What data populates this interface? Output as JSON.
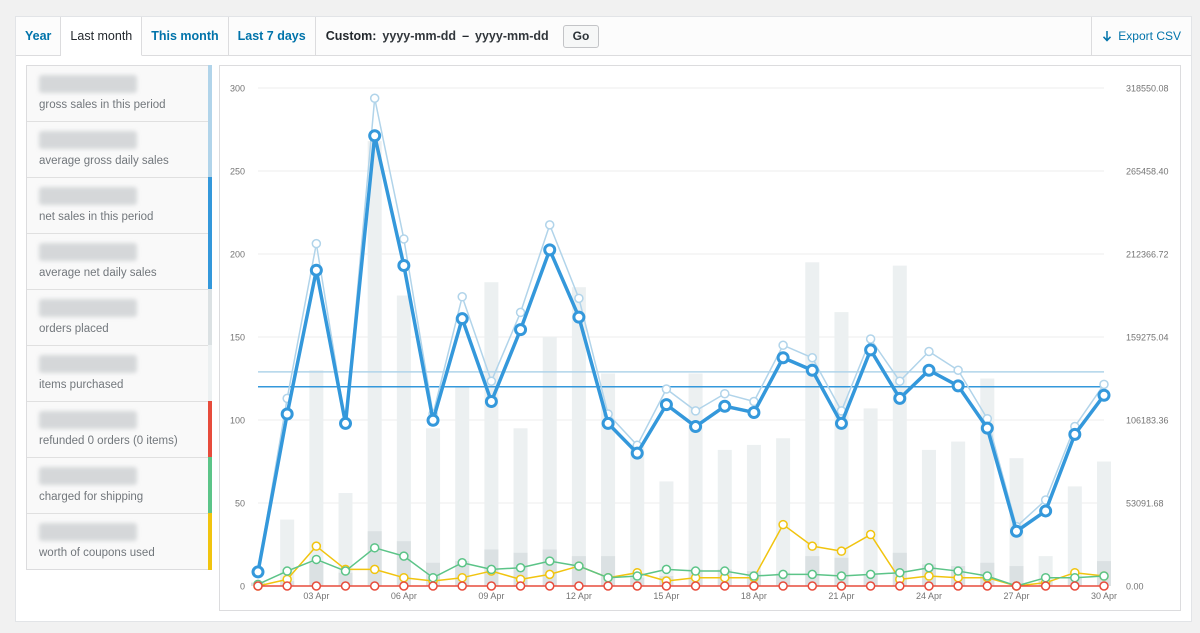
{
  "tabs": [
    {
      "label": "Year",
      "active": false
    },
    {
      "label": "Last month",
      "active": true
    },
    {
      "label": "This month",
      "active": false
    },
    {
      "label": "Last 7 days",
      "active": false
    }
  ],
  "custom": {
    "label": "Custom:",
    "from": "yyyy-mm-dd",
    "to": "yyyy-mm-dd",
    "separator": "–",
    "go_label": "Go"
  },
  "export": {
    "label": "Export CSV",
    "icon": "download-arrow-icon"
  },
  "stats": [
    {
      "desc": "gross sales in this period",
      "color": "#b1d4ea"
    },
    {
      "desc": "average gross daily sales",
      "color": "#b1d4ea"
    },
    {
      "desc": "net sales in this period",
      "color": "#3498db"
    },
    {
      "desc": "average net daily sales",
      "color": "#3498db"
    },
    {
      "desc": "orders placed",
      "color": "#dbe1e3"
    },
    {
      "desc": "items purchased",
      "color": "#ecf0f1"
    },
    {
      "desc": "refunded 0 orders (0 items)",
      "color": "#e74c3c"
    },
    {
      "desc": "charged for shipping",
      "color": "#5cc488"
    },
    {
      "desc": "worth of coupons used",
      "color": "#f1c40f"
    }
  ],
  "chart_data": {
    "type": "line",
    "x_ticks": [
      "03 Apr",
      "06 Apr",
      "09 Apr",
      "12 Apr",
      "15 Apr",
      "18 Apr",
      "21 Apr",
      "24 Apr",
      "27 Apr",
      "30 Apr"
    ],
    "x_tick_days": [
      3,
      6,
      9,
      12,
      15,
      18,
      21,
      24,
      27,
      30
    ],
    "days": [
      1,
      2,
      3,
      4,
      5,
      6,
      7,
      8,
      9,
      10,
      11,
      12,
      13,
      14,
      15,
      16,
      17,
      18,
      19,
      20,
      21,
      22,
      23,
      24,
      25,
      26,
      27,
      28,
      29,
      30
    ],
    "y_left": {
      "ticks": [
        "0",
        "50",
        "100",
        "150",
        "200",
        "250",
        "300"
      ],
      "ylim": [
        0,
        300
      ]
    },
    "y_right": {
      "ticks": [
        "0.00",
        "53091.68",
        "106183.36",
        "159275.04",
        "212366.72",
        "265458.40",
        "318550.08"
      ],
      "ylim": [
        0,
        318550.08
      ]
    },
    "colors": {
      "orders_bar": "#dbe1e3",
      "items_bar": "#ecf0f1",
      "gross": "#b1d4ea",
      "net": "#3498db",
      "shipping": "#5cc488",
      "coupons": "#f1c40f",
      "refunds": "#e74c3c",
      "avg_gross": "#b1d4ea",
      "avg_net": "#3498db"
    },
    "series": [
      {
        "key": "items_bar",
        "type": "bar",
        "values": [
          2,
          40,
          130,
          56,
          268,
          175,
          95,
          120,
          183,
          95,
          150,
          180,
          128,
          85,
          63,
          128,
          82,
          85,
          89,
          195,
          165,
          107,
          193,
          82,
          87,
          125,
          77,
          18,
          60,
          75
        ]
      },
      {
        "key": "orders_bar",
        "type": "bar",
        "values": [
          2,
          3,
          14,
          8,
          33,
          27,
          14,
          15,
          22,
          20,
          22,
          18,
          18,
          5,
          6,
          10,
          10,
          9,
          8,
          18,
          17,
          7,
          20,
          13,
          12,
          14,
          12,
          3,
          5,
          15
        ]
      },
      {
        "key": "gross",
        "type": "line",
        "axis": "right",
        "values": [
          9900,
          120000,
          219000,
          104000,
          312000,
          222000,
          110000,
          185000,
          131000,
          175000,
          231000,
          184000,
          110000,
          90000,
          126000,
          112000,
          123000,
          118000,
          154000,
          146000,
          112000,
          158000,
          131000,
          150000,
          138000,
          107000,
          38000,
          55000,
          102000,
          129000
        ]
      },
      {
        "key": "net",
        "type": "line",
        "axis": "right",
        "values": [
          9000,
          110000,
          202000,
          104000,
          288000,
          205000,
          106000,
          171000,
          118000,
          164000,
          215000,
          172000,
          104000,
          85000,
          116000,
          102000,
          115000,
          111000,
          146000,
          138000,
          104000,
          151000,
          120000,
          138000,
          128000,
          101000,
          35000,
          48000,
          97000,
          122000
        ]
      },
      {
        "key": "coupons",
        "type": "line",
        "axis": "left",
        "values": [
          0,
          4,
          24,
          10,
          10,
          5,
          3,
          5,
          9,
          4,
          7,
          12,
          5,
          8,
          3,
          5,
          5,
          5,
          37,
          24,
          21,
          31,
          4,
          6,
          5,
          5,
          0,
          2,
          8,
          6
        ]
      },
      {
        "key": "shipping",
        "type": "line",
        "axis": "left",
        "values": [
          1,
          9,
          16,
          9,
          23,
          18,
          5,
          14,
          10,
          11,
          15,
          12,
          5,
          6,
          10,
          9,
          9,
          6,
          7,
          7,
          6,
          7,
          8,
          11,
          9,
          6,
          0,
          5,
          5,
          6
        ]
      },
      {
        "key": "refunds",
        "type": "line",
        "axis": "left",
        "values": [
          0,
          0,
          0,
          0,
          0,
          0,
          0,
          0,
          0,
          0,
          0,
          0,
          0,
          0,
          0,
          0,
          0,
          0,
          0,
          0,
          0,
          0,
          0,
          0,
          0,
          0,
          0,
          0,
          0,
          0
        ]
      }
    ],
    "averages": [
      {
        "key": "avg_gross",
        "value": 129
      },
      {
        "key": "avg_net",
        "value": 120
      }
    ],
    "grid": true
  }
}
